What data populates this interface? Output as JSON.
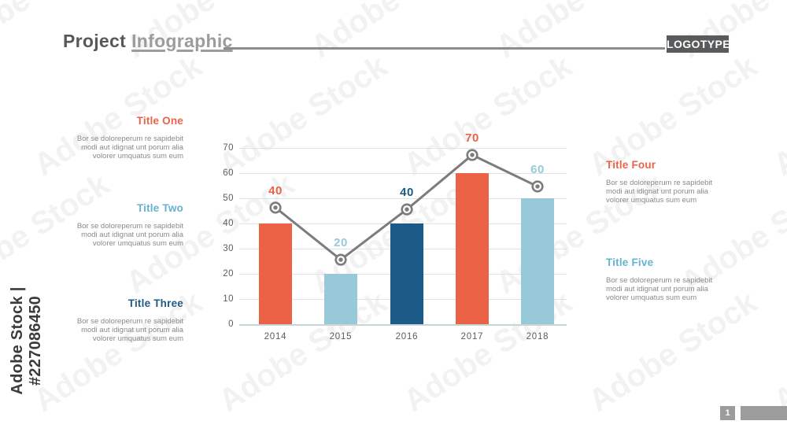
{
  "header": {
    "title_primary": "Project",
    "title_secondary": "Infographic",
    "logotype": "LOGOTYPE"
  },
  "palette": {
    "orange": "#ec6247",
    "light_blue": "#97c9d9",
    "dark_blue": "#1c5a87",
    "title_light_blue": "#64b3d2",
    "line_gray": "#7c7c7c",
    "grid_line": "#dde4e7",
    "axis_line": "#c9d4d8",
    "body_text_gray": "#8a8a8a",
    "heading_gray": "#58585a",
    "muted_gray": "#9c9c9c"
  },
  "sections": {
    "body_lines": [
      "Bor se doloreperum re sapidebit",
      "modi aut idignat unt porum alia",
      "volorer umquatus sum eum"
    ],
    "left": [
      {
        "title": "Title One",
        "color_key": "orange"
      },
      {
        "title": "Title Two",
        "color_key": "title_light_blue"
      },
      {
        "title": "Title Three",
        "color_key": "dark_blue"
      }
    ],
    "right": [
      {
        "title": "Title Four",
        "color_key": "orange"
      },
      {
        "title": "Title Five",
        "color_key": "title_light_blue"
      }
    ]
  },
  "chart_data": {
    "type": "bar",
    "title": "",
    "xlabel": "",
    "ylabel": "",
    "categories": [
      "2014",
      "2015",
      "2016",
      "2017",
      "2018"
    ],
    "series": [
      {
        "name": "bars",
        "type": "bar",
        "values": [
          40,
          20,
          40,
          60,
          50
        ],
        "color_keys": [
          "orange",
          "light_blue",
          "dark_blue",
          "orange",
          "light_blue"
        ]
      },
      {
        "name": "trend-line",
        "type": "line",
        "values": [
          40,
          20,
          40,
          70,
          60
        ],
        "label_color_keys": [
          "orange",
          "light_blue",
          "dark_blue",
          "orange",
          "light_blue"
        ],
        "marker_plot_values": [
          46.3,
          25.6,
          45.6,
          67.2,
          54.7
        ]
      }
    ],
    "yticks": [
      70,
      60,
      50,
      40,
      30,
      20,
      10,
      0
    ],
    "ylim": [
      0,
      70
    ],
    "grid": true,
    "legend": false
  },
  "watermark": {
    "vertical_label": "Adobe Stock | #227086450",
    "diagonal_text": "Adobe Stock"
  },
  "footer": {
    "page_number": "1"
  }
}
